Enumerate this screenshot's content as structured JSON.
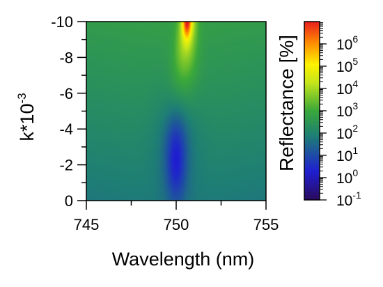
{
  "chart_data": {
    "type": "heatmap",
    "title": "",
    "xlabel": "Wavelength (nm)",
    "ylabel_base": "k*10",
    "ylabel_exponent": "-3",
    "xlim": [
      745,
      755
    ],
    "ylim": [
      0,
      -10
    ],
    "x_ticks": [
      745,
      750,
      755
    ],
    "x_tick_labels": [
      "745",
      "750",
      "755"
    ],
    "y_ticks": [
      0,
      -2,
      -4,
      -6,
      -8,
      -10
    ],
    "y_tick_labels": [
      "0",
      "-2",
      "-4",
      "-6",
      "-8",
      "-10"
    ],
    "colorbar": {
      "label": "Reflectance [%]",
      "scale": "log",
      "range": [
        0.1,
        10000000
      ],
      "tick_base": "10",
      "tick_exponents": [
        "6",
        "5",
        "4",
        "3",
        "2",
        "1",
        "0",
        "-1"
      ],
      "tick_values": [
        1000000,
        100000,
        10000,
        1000,
        100,
        10,
        1,
        0.1
      ],
      "colormap": [
        "#2a0a5c",
        "#1f1fd1",
        "#1e7f74",
        "#3aa83a",
        "#c6e61a",
        "#fff200",
        "#ff8c00",
        "#e81e1e"
      ]
    },
    "features": {
      "min_wavelength_nm": 750.0,
      "min_k": -2.2,
      "max_wavelength_nm": 750.6,
      "max_k": -10
    },
    "grid": false,
    "legend": "right"
  }
}
